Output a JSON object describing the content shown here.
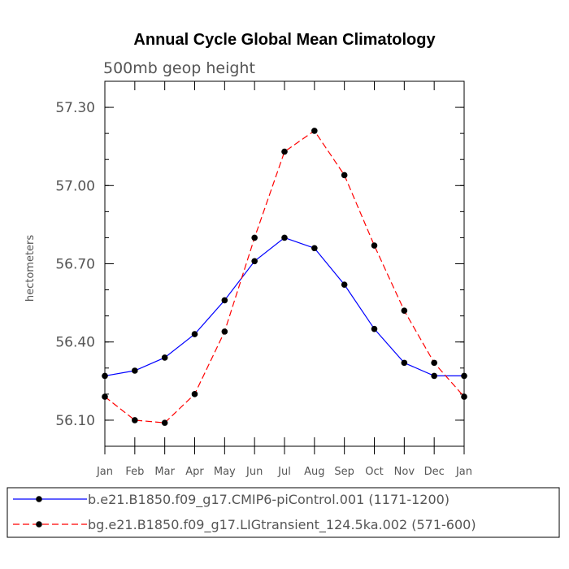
{
  "chart_data": {
    "type": "line",
    "title": "Annual Cycle Global Mean Climatology",
    "subtitle": "500mb geop height",
    "xlabel": "",
    "ylabel": "hectometers",
    "categories": [
      "Jan",
      "Feb",
      "Mar",
      "Apr",
      "May",
      "Jun",
      "Jul",
      "Aug",
      "Sep",
      "Oct",
      "Nov",
      "Dec",
      "Jan"
    ],
    "ylim": [
      56.0,
      57.4
    ],
    "yticks": [
      56.1,
      56.4,
      56.7,
      57.0,
      57.3
    ],
    "ytick_labels": [
      "56.10",
      "56.40",
      "56.70",
      "57.00",
      "57.30"
    ],
    "legend_position": "bottom",
    "series": [
      {
        "name": "b.e21.B1850.f09_g17.CMIP6-piControl.001 (1171-1200)",
        "color": "#0000ff",
        "dash": "solid",
        "values": [
          56.27,
          56.29,
          56.34,
          56.43,
          56.56,
          56.71,
          56.8,
          56.76,
          56.62,
          56.45,
          56.32,
          56.27,
          56.27
        ]
      },
      {
        "name": "bg.e21.B1850.f09_g17.LIGtransient_124.5ka.002 (571-600)",
        "color": "#ff0000",
        "dash": "dashed",
        "values": [
          56.19,
          56.1,
          56.09,
          56.2,
          56.44,
          56.8,
          57.13,
          57.21,
          57.04,
          56.77,
          56.52,
          56.32,
          56.19
        ]
      }
    ]
  }
}
